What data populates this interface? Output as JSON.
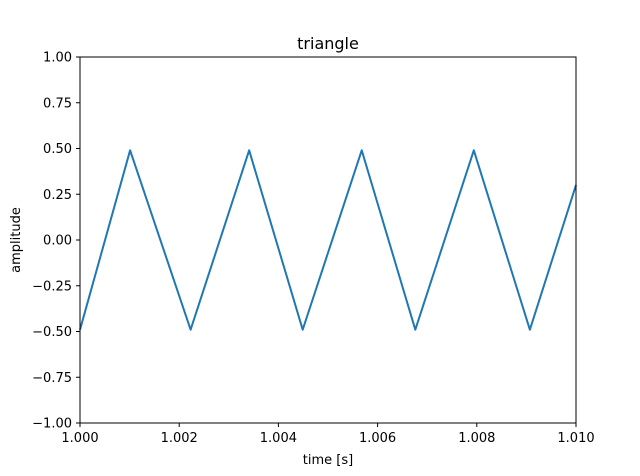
{
  "chart_data": {
    "type": "line",
    "title": "triangle",
    "xlabel": "time [s]",
    "ylabel": "amplitude",
    "xlim": [
      1.0,
      1.01
    ],
    "ylim": [
      -1.0,
      1.0
    ],
    "grid": false,
    "legend": "none",
    "x_ticks": [
      "1.000",
      "1.002",
      "1.004",
      "1.006",
      "1.008",
      "1.010"
    ],
    "x_tick_values": [
      1.0,
      1.002,
      1.004,
      1.006,
      1.008,
      1.01
    ],
    "y_ticks": [
      "1.00",
      "0.75",
      "0.50",
      "0.25",
      "0.00",
      "−0.25",
      "−0.50",
      "−0.75",
      "−1.00"
    ],
    "y_tick_values": [
      1.0,
      0.75,
      0.5,
      0.25,
      0.0,
      -0.25,
      -0.5,
      -0.75,
      -1.0
    ],
    "series": [
      {
        "color": "#1f77b4",
        "x": [
          1.0,
          1.00101,
          1.00223,
          1.00341,
          1.00449,
          1.00568,
          1.00676,
          1.00794,
          1.00907,
          1.01
        ],
        "y": [
          -0.49,
          0.49,
          -0.49,
          0.49,
          -0.49,
          0.49,
          -0.49,
          0.49,
          -0.49,
          0.3
        ]
      }
    ]
  }
}
